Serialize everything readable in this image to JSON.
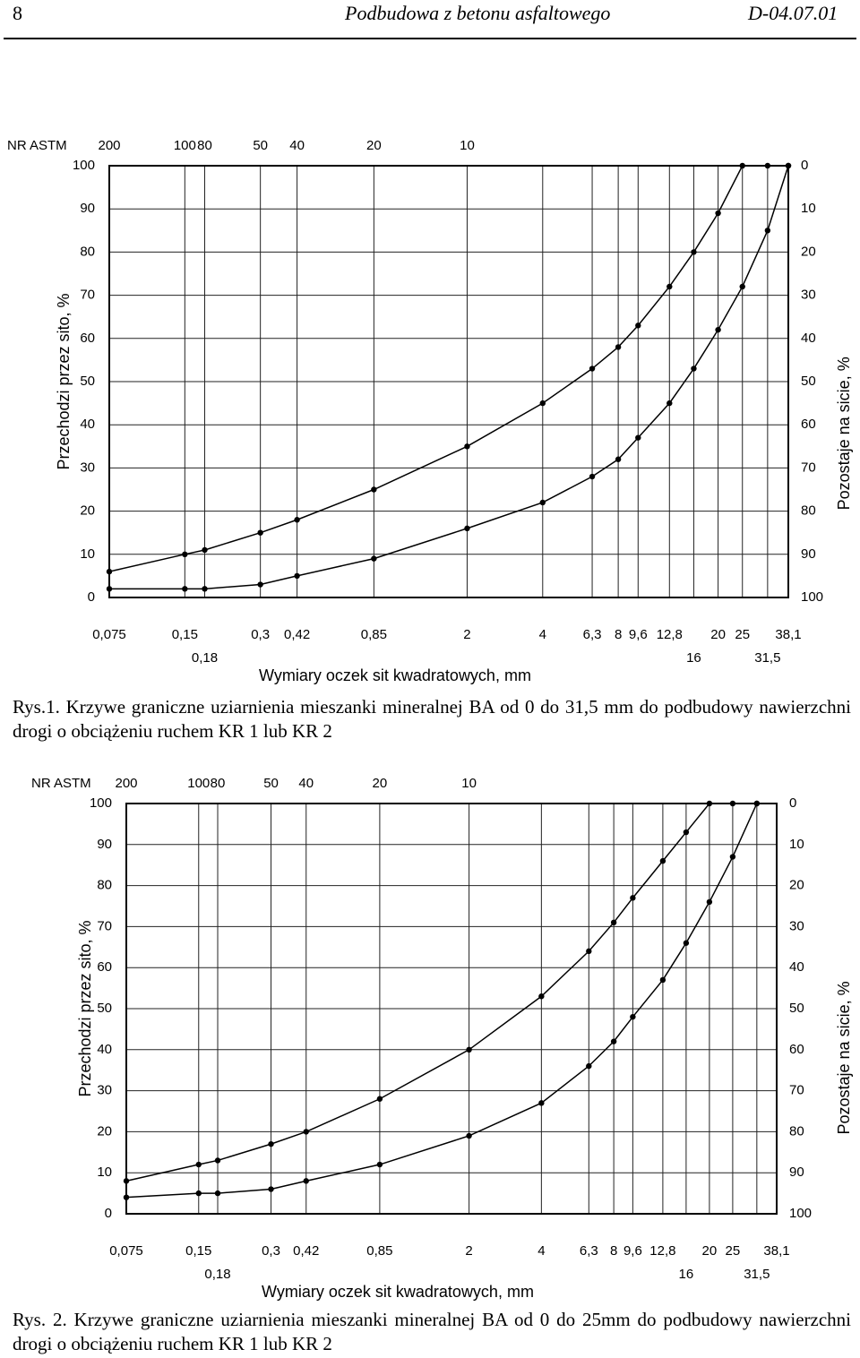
{
  "header": {
    "page": "8",
    "title": "Podbudowa z betonu asfaltowego",
    "code": "D-04.07.01"
  },
  "chart_data": [
    {
      "type": "line",
      "caption": "Rys.1. Krzywe graniczne uziarnienia mieszanki mineralnej BA od 0 do 31,5 mm do podbudowy nawierzchni drogi o obciążeniu ruchem  KR 1 lub KR 2",
      "xlabel": "Wymiary oczek sit kwadratowych, mm",
      "ylabel": "Przechodzi przez sito, %",
      "y2label": "Pozostaje na sicie, %",
      "astm_label": "NR ASTM",
      "xscale": "log",
      "grid": true,
      "x": [
        0.075,
        0.15,
        0.18,
        0.3,
        0.42,
        0.85,
        2,
        4,
        6.3,
        8,
        9.6,
        12.8,
        16,
        20,
        25,
        31.5,
        38.1
      ],
      "xlim": [
        0.075,
        38.1
      ],
      "xticks": [
        {
          "value": 0.075,
          "label": "0,075"
        },
        {
          "value": 0.15,
          "label": "0,15"
        },
        {
          "value": 0.18,
          "label": "0,18"
        },
        {
          "value": 0.3,
          "label": "0,3"
        },
        {
          "value": 0.42,
          "label": "0,42"
        },
        {
          "value": 0.85,
          "label": "0,85"
        },
        2,
        4,
        {
          "value": 6.3,
          "label": "6,3"
        },
        8,
        {
          "value": 9.6,
          "label": "9,6"
        },
        {
          "value": 12.8,
          "label": "12,8"
        },
        16,
        20,
        25,
        {
          "value": 31.5,
          "label": "31,5"
        },
        {
          "value": 38.1,
          "label": "38,1"
        }
      ],
      "astm_ticks": [
        {
          "value": 0.075,
          "label": "200"
        },
        {
          "value": 0.15,
          "label": "100"
        },
        {
          "value": 0.18,
          "label": "80"
        },
        {
          "value": 0.3,
          "label": "50"
        },
        {
          "value": 0.42,
          "label": "40"
        },
        {
          "value": 0.85,
          "label": "20"
        },
        {
          "value": 2,
          "label": "10"
        }
      ],
      "ylim": [
        0,
        100
      ],
      "yticks": [
        0,
        10,
        20,
        30,
        40,
        50,
        60,
        70,
        80,
        90,
        100
      ],
      "y2lim": [
        100,
        0
      ],
      "y2ticks": [
        0,
        10,
        20,
        30,
        40,
        50,
        60,
        70,
        80,
        90,
        100
      ],
      "series": [
        {
          "color": "#000000",
          "values": [
            6,
            10,
            11,
            15,
            18,
            25,
            35,
            45,
            53,
            58,
            63,
            72,
            80,
            89,
            100,
            100,
            100
          ]
        },
        {
          "color": "#000000",
          "values": [
            2,
            2,
            2,
            3,
            5,
            9,
            16,
            22,
            28,
            32,
            37,
            45,
            53,
            62,
            72,
            85,
            100
          ]
        }
      ]
    },
    {
      "type": "line",
      "caption": "Rys. 2. Krzywe graniczne uziarnienia mieszanki mineralnej BA od 0 do 25mm do podbudowy nawierzchni drogi o obciążeniu ruchem  KR 1 lub KR 2",
      "xlabel": "Wymiary oczek sit kwadratowych, mm",
      "ylabel": "Przechodzi przez sito, %",
      "y2label": "Pozostaje na sicie, %",
      "astm_label": "NR ASTM",
      "xscale": "log",
      "grid": true,
      "x": [
        0.075,
        0.15,
        0.18,
        0.3,
        0.42,
        0.85,
        2,
        4,
        6.3,
        8,
        9.6,
        12.8,
        16,
        20,
        25,
        31.5,
        38.1
      ],
      "xlim": [
        0.075,
        38.1
      ],
      "xticks": [
        {
          "value": 0.075,
          "label": "0,075"
        },
        {
          "value": 0.15,
          "label": "0,15"
        },
        {
          "value": 0.18,
          "label": "0,18"
        },
        {
          "value": 0.3,
          "label": "0,3"
        },
        {
          "value": 0.42,
          "label": "0,42"
        },
        {
          "value": 0.85,
          "label": "0,85"
        },
        2,
        4,
        {
          "value": 6.3,
          "label": "6,3"
        },
        8,
        {
          "value": 9.6,
          "label": "9,6"
        },
        {
          "value": 12.8,
          "label": "12,8"
        },
        16,
        20,
        25,
        {
          "value": 31.5,
          "label": "31,5"
        },
        {
          "value": 38.1,
          "label": "38,1"
        }
      ],
      "astm_ticks": [
        {
          "value": 0.075,
          "label": "200"
        },
        {
          "value": 0.15,
          "label": "100"
        },
        {
          "value": 0.18,
          "label": "80"
        },
        {
          "value": 0.3,
          "label": "50"
        },
        {
          "value": 0.42,
          "label": "40"
        },
        {
          "value": 0.85,
          "label": "20"
        },
        {
          "value": 2,
          "label": "10"
        }
      ],
      "ylim": [
        0,
        100
      ],
      "yticks": [
        0,
        10,
        20,
        30,
        40,
        50,
        60,
        70,
        80,
        90,
        100
      ],
      "y2lim": [
        100,
        0
      ],
      "y2ticks": [
        0,
        10,
        20,
        30,
        40,
        50,
        60,
        70,
        80,
        90,
        100
      ],
      "series": [
        {
          "color": "#000000",
          "values": [
            8,
            12,
            13,
            17,
            20,
            28,
            40,
            53,
            64,
            71,
            77,
            86,
            93,
            100,
            100,
            100,
            null
          ]
        },
        {
          "color": "#000000",
          "values": [
            4,
            5,
            5,
            6,
            8,
            12,
            19,
            27,
            36,
            42,
            48,
            57,
            66,
            76,
            87,
            100,
            null
          ]
        }
      ]
    }
  ]
}
